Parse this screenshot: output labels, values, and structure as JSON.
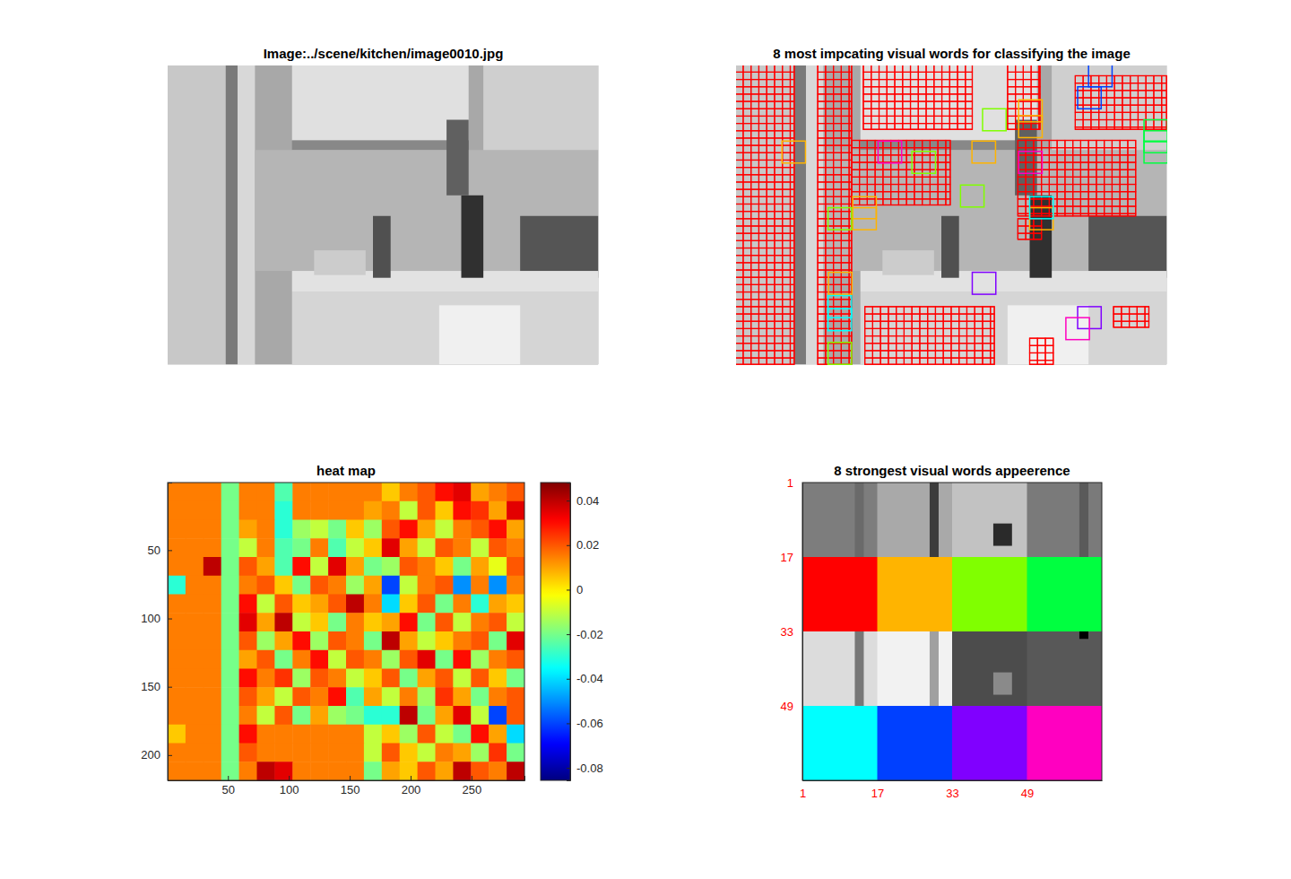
{
  "chart_data": [
    {
      "type": "image",
      "title": "Image:../scene/kitchen/image0010.jpg"
    },
    {
      "type": "image",
      "title": "8 most impcating visual words for classifying the image",
      "patch_size": 16,
      "regions": [
        {
          "x0": 0,
          "y0": 0,
          "x1": 40,
          "y1": 218,
          "word": 0
        },
        {
          "x0": 56,
          "y0": 0,
          "x1": 79,
          "y1": 218,
          "word": 0
        },
        {
          "x0": 87,
          "y0": 0,
          "x1": 161,
          "y1": 47,
          "word": 0
        },
        {
          "x0": 185,
          "y0": 0,
          "x1": 207,
          "y1": 47,
          "word": 0
        },
        {
          "x0": 231,
          "y0": 8,
          "x1": 293,
          "y1": 47,
          "word": 0
        },
        {
          "x0": 79,
          "y0": 55,
          "x1": 146,
          "y1": 102,
          "word": 0
        },
        {
          "x0": 192,
          "y0": 55,
          "x1": 272,
          "y1": 110,
          "word": 0
        },
        {
          "x0": 88,
          "y0": 176,
          "x1": 176,
          "y1": 218,
          "word": 0
        },
        {
          "x0": 257,
          "y0": 176,
          "x1": 281,
          "y1": 191,
          "word": 0
        },
        {
          "x0": 200,
          "y0": 199,
          "x1": 216,
          "y1": 218,
          "word": 0
        },
        {
          "x0": 192,
          "y0": 112,
          "x1": 208,
          "y1": 127,
          "word": 0
        }
      ],
      "boxes": [
        {
          "x": 31.7,
          "y": 55.5,
          "word": 1
        },
        {
          "x": 160.8,
          "y": 55.5,
          "word": 1
        },
        {
          "x": 192.5,
          "y": 25.5,
          "word": 1
        },
        {
          "x": 192.5,
          "y": 37,
          "word": 1
        },
        {
          "x": 79.8,
          "y": 96,
          "word": 1
        },
        {
          "x": 79.8,
          "y": 104,
          "word": 1
        },
        {
          "x": 63.3,
          "y": 151,
          "word": 1
        },
        {
          "x": 200,
          "y": 104,
          "word": 1
        },
        {
          "x": 168,
          "y": 32,
          "word": 2
        },
        {
          "x": 120,
          "y": 63,
          "word": 2
        },
        {
          "x": 153,
          "y": 87.5,
          "word": 2
        },
        {
          "x": 63,
          "y": 104,
          "word": 2
        },
        {
          "x": 63,
          "y": 202,
          "word": 2
        },
        {
          "x": 277.7,
          "y": 40,
          "word": 3
        },
        {
          "x": 277.7,
          "y": 48,
          "word": 3
        },
        {
          "x": 277.7,
          "y": 55.5,
          "word": 3
        },
        {
          "x": 63,
          "y": 168,
          "word": 4
        },
        {
          "x": 63,
          "y": 177.5,
          "word": 4
        },
        {
          "x": 200,
          "y": 96,
          "word": 4
        },
        {
          "x": 240,
          "y": 0,
          "word": 5
        },
        {
          "x": 232.6,
          "y": 16,
          "word": 5
        },
        {
          "x": 161,
          "y": 151,
          "word": 6
        },
        {
          "x": 232.6,
          "y": 176,
          "word": 6
        },
        {
          "x": 97,
          "y": 55.5,
          "word": 7
        },
        {
          "x": 192.5,
          "y": 63,
          "word": 7
        },
        {
          "x": 224.6,
          "y": 184,
          "word": 7
        }
      ]
    },
    {
      "type": "heatmap",
      "title": "heat map",
      "xlim": [
        0.5,
        293.5
      ],
      "ylim": [
        0.5,
        218.5
      ],
      "xticks": [
        50,
        100,
        150,
        200,
        250
      ],
      "yticks": [
        50,
        100,
        150,
        200
      ],
      "z": [
        [
          0.015,
          0.015,
          0.015,
          -0.02,
          0.015,
          0.015,
          -0.025,
          0.015,
          0.015,
          0.015,
          0.015,
          0.015,
          0.005,
          0.015,
          0.02,
          0.03,
          0.035,
          0.01,
          0.015,
          0.02
        ],
        [
          0.015,
          0.015,
          0.015,
          -0.02,
          0.015,
          0.015,
          -0.03,
          0.015,
          0.015,
          0.015,
          0.015,
          0.01,
          0.015,
          -0.01,
          0.02,
          0.005,
          0.03,
          0.025,
          0.01,
          0.035
        ],
        [
          0.015,
          0.015,
          0.015,
          -0.02,
          0.01,
          0.015,
          -0.03,
          -0.015,
          -0.01,
          -0.02,
          0.005,
          -0.015,
          0.02,
          0.03,
          0.01,
          -0.01,
          0.015,
          0.02,
          0.03,
          0.01
        ],
        [
          0.015,
          0.015,
          0.015,
          -0.02,
          -0.01,
          0.015,
          -0.025,
          -0.02,
          0.015,
          -0.025,
          -0.01,
          0.005,
          0.035,
          0.01,
          -0.01,
          0.02,
          0.015,
          -0.01,
          0.02,
          0.015
        ],
        [
          0.015,
          0.015,
          0.04,
          -0.02,
          0.02,
          0.01,
          -0.025,
          0.03,
          -0.01,
          0.035,
          0.01,
          -0.02,
          -0.015,
          0.02,
          0.015,
          0.005,
          -0.02,
          0.01,
          -0.005,
          0.02
        ],
        [
          -0.03,
          0.015,
          0.015,
          -0.02,
          0.015,
          0.02,
          0.005,
          -0.02,
          0.02,
          0.015,
          -0.015,
          0.01,
          -0.06,
          -0.01,
          0.015,
          0.02,
          -0.05,
          0.015,
          -0.05,
          0.015
        ],
        [
          0.015,
          0.015,
          0.015,
          -0.02,
          0.03,
          -0.01,
          0.02,
          0.005,
          0.01,
          0.02,
          0.04,
          0.015,
          -0.04,
          0.005,
          0.02,
          -0.02,
          0.015,
          -0.03,
          0.01,
          0.005
        ],
        [
          0.015,
          0.015,
          0.015,
          -0.02,
          0.035,
          0.01,
          0.04,
          -0.01,
          0.005,
          -0.02,
          0.015,
          0.005,
          0.01,
          0.03,
          -0.02,
          0.02,
          -0.01,
          0.015,
          0.02,
          -0.01
        ],
        [
          0.015,
          0.015,
          0.015,
          -0.02,
          0.02,
          -0.015,
          0.01,
          0.03,
          -0.015,
          0.02,
          0.015,
          -0.02,
          0.04,
          0.01,
          -0.01,
          0.005,
          0.015,
          0.02,
          -0.02,
          0.035
        ],
        [
          0.015,
          0.015,
          0.015,
          -0.02,
          0.01,
          0.02,
          -0.02,
          0.015,
          0.03,
          -0.01,
          0.02,
          0.015,
          -0.015,
          0.02,
          0.035,
          -0.02,
          0.03,
          -0.015,
          0.015,
          0.02
        ],
        [
          0.015,
          0.015,
          0.015,
          -0.02,
          0.03,
          0.015,
          0.025,
          -0.015,
          0.02,
          0.015,
          -0.01,
          0.005,
          0.02,
          -0.02,
          0.01,
          0.02,
          -0.01,
          0.02,
          0.005,
          -0.02
        ],
        [
          0.015,
          0.015,
          0.015,
          -0.02,
          0.02,
          0.01,
          -0.01,
          0.02,
          0.015,
          0.03,
          -0.025,
          0.01,
          -0.01,
          0.015,
          -0.015,
          0.025,
          0.01,
          -0.02,
          0.015,
          0.02
        ],
        [
          0.015,
          0.015,
          0.015,
          -0.02,
          0.015,
          -0.01,
          0.02,
          -0.02,
          0.01,
          -0.015,
          -0.02,
          -0.03,
          -0.03,
          0.04,
          -0.02,
          0.01,
          0.035,
          -0.01,
          -0.06,
          0.02
        ],
        [
          0.005,
          0.015,
          0.015,
          -0.02,
          0.03,
          0.015,
          0.015,
          0.015,
          0.015,
          0.015,
          0.015,
          -0.01,
          0.005,
          -0.015,
          0.02,
          -0.01,
          -0.02,
          0.03,
          0.01,
          -0.04
        ],
        [
          0.015,
          0.015,
          0.015,
          -0.02,
          0.02,
          0.015,
          0.015,
          0.015,
          0.015,
          0.015,
          0.015,
          -0.01,
          0.02,
          0.005,
          -0.01,
          0.015,
          0.01,
          -0.015,
          0.025,
          -0.02
        ],
        [
          0.015,
          0.015,
          0.015,
          -0.02,
          0.015,
          0.04,
          0.035,
          0.015,
          0.015,
          0.015,
          0.015,
          -0.02,
          0.01,
          0.005,
          0.02,
          0.01,
          0.04,
          0.02,
          0.015,
          0.04
        ]
      ],
      "colorbar": {
        "range": [
          -0.0856,
          0.0481
        ],
        "ticks": [
          0.04,
          0.02,
          0,
          -0.02,
          -0.04,
          -0.06,
          -0.08
        ]
      }
    },
    {
      "type": "image_grid",
      "title": "8 strongest visual words appeerence",
      "xlim": [
        1,
        65
      ],
      "ylim": [
        1,
        65
      ],
      "xticks": [
        1,
        17,
        33,
        49
      ],
      "yticks": [
        1,
        17,
        33,
        49
      ],
      "colors": [
        "#ff0000",
        "#ffb400",
        "#80ff00",
        "#00ff40",
        "#00ffff",
        "#0040ff",
        "#8000ff",
        "#ff00c0"
      ]
    }
  ]
}
